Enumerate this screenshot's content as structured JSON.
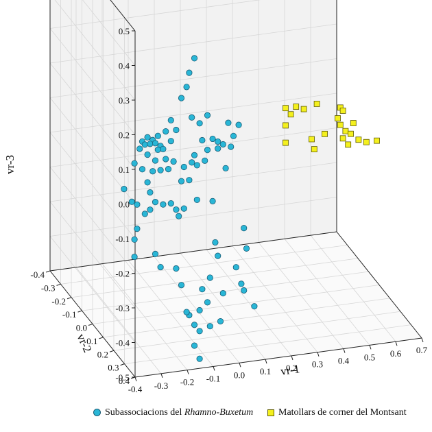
{
  "chart_data": {
    "type": "scatter",
    "projection": "3d",
    "axes": {
      "x": {
        "label": "vr-1",
        "ticks": [
          "-0.4",
          "-0.3",
          "-0.2",
          "-0.1",
          "0.0",
          "0.1",
          "0.2",
          "0.3",
          "0.4",
          "0.5",
          "0.6",
          "0.7"
        ],
        "range": [
          -0.4,
          0.7
        ]
      },
      "y": {
        "label": "vr-2",
        "ticks": [
          "-0.4",
          "-0.3",
          "-0.2",
          "-0.1",
          "0.0",
          "0.1",
          "0.2",
          "0.3",
          "0.4"
        ],
        "range": [
          -0.4,
          0.4
        ]
      },
      "z": {
        "label": "vr-3",
        "ticks": [
          "0.5",
          "0.4",
          "0.3",
          "0.2",
          "0.1",
          "0.0",
          "-0.1",
          "-0.2",
          "-0.3",
          "-0.4",
          "-0.5"
        ],
        "range": [
          -0.5,
          0.5
        ]
      }
    },
    "grid": true,
    "legend_position": "bottom",
    "series": [
      {
        "name": "Subassociacions del Rhamno-Buxetum",
        "name_plain": "Subassociacions del ",
        "name_italic": "Rhamno-Buxetum",
        "marker": "circle",
        "color": "#29b6d6",
        "stroke": "#1b5e77",
        "points": [
          [
            -0.05,
            0.1,
            0.27
          ],
          [
            -0.07,
            0.1,
            0.23
          ],
          [
            -0.08,
            0.1,
            0.19
          ],
          [
            -0.1,
            0.1,
            0.16
          ],
          [
            -0.06,
            0.1,
            0.1
          ],
          [
            -0.03,
            0.1,
            0.08
          ],
          [
            0.0,
            0.1,
            0.1
          ],
          [
            0.02,
            0.1,
            0.03
          ],
          [
            0.04,
            0.1,
            0.02
          ],
          [
            -0.02,
            0.1,
            0.03
          ],
          [
            -0.14,
            0.1,
            0.1
          ],
          [
            -0.12,
            0.1,
            0.07
          ],
          [
            -0.16,
            0.1,
            0.07
          ],
          [
            -0.19,
            0.1,
            0.06
          ],
          [
            -0.21,
            0.1,
            0.05
          ],
          [
            -0.23,
            0.1,
            0.06
          ],
          [
            -0.25,
            0.1,
            0.05
          ],
          [
            -0.24,
            0.1,
            0.04
          ],
          [
            -0.22,
            0.1,
            0.04
          ],
          [
            -0.2,
            0.1,
            0.04
          ],
          [
            -0.18,
            0.1,
            0.03
          ],
          [
            -0.26,
            0.1,
            0.03
          ],
          [
            -0.14,
            0.1,
            0.04
          ],
          [
            -0.17,
            0.1,
            0.02
          ],
          [
            -0.19,
            0.1,
            0.02
          ],
          [
            -0.23,
            0.1,
            0.01
          ],
          [
            -0.28,
            0.1,
            -0.01
          ],
          [
            -0.2,
            0.1,
            -0.01
          ],
          [
            -0.16,
            0.1,
            -0.01
          ],
          [
            -0.13,
            0.1,
            -0.02
          ],
          [
            -0.25,
            0.1,
            -0.03
          ],
          [
            -0.21,
            0.1,
            -0.04
          ],
          [
            -0.18,
            0.1,
            -0.04
          ],
          [
            -0.15,
            0.1,
            -0.04
          ],
          [
            -0.09,
            0.1,
            -0.04
          ],
          [
            -0.06,
            0.1,
            -0.03
          ],
          [
            -0.04,
            0.1,
            -0.04
          ],
          [
            -0.07,
            0.1,
            -0.08
          ],
          [
            -0.1,
            0.1,
            -0.08
          ],
          [
            -0.23,
            0.1,
            -0.07
          ],
          [
            -0.32,
            0.1,
            -0.08
          ],
          [
            -0.29,
            0.1,
            -0.12
          ],
          [
            -0.27,
            0.1,
            -0.13
          ],
          [
            -0.22,
            0.1,
            -0.1
          ],
          [
            -0.2,
            0.1,
            -0.13
          ],
          [
            -0.22,
            0.1,
            -0.15
          ],
          [
            -0.24,
            0.1,
            -0.16
          ],
          [
            -0.17,
            0.1,
            -0.14
          ],
          [
            -0.14,
            0.1,
            -0.14
          ],
          [
            -0.12,
            0.1,
            -0.16
          ],
          [
            -0.09,
            0.1,
            -0.16
          ],
          [
            -0.11,
            0.1,
            -0.18
          ],
          [
            -0.04,
            0.1,
            -0.14
          ],
          [
            0.02,
            0.1,
            -0.15
          ],
          [
            -0.27,
            0.1,
            -0.2
          ],
          [
            -0.28,
            0.1,
            -0.23
          ],
          [
            -0.28,
            0.1,
            -0.28
          ],
          [
            -0.2,
            0.1,
            -0.28
          ],
          [
            -0.18,
            0.1,
            -0.32
          ],
          [
            -0.12,
            0.1,
            -0.33
          ],
          [
            -0.1,
            0.1,
            -0.38
          ],
          [
            0.03,
            0.1,
            -0.27
          ],
          [
            0.04,
            0.1,
            -0.31
          ],
          [
            0.01,
            0.1,
            -0.37
          ],
          [
            0.11,
            0.1,
            -0.35
          ],
          [
            0.13,
            0.1,
            -0.4
          ],
          [
            0.14,
            0.1,
            -0.42
          ],
          [
            0.06,
            0.1,
            -0.42
          ],
          [
            0.15,
            0.1,
            -0.3
          ],
          [
            0.14,
            0.1,
            -0.24
          ],
          [
            -0.02,
            0.1,
            -0.4
          ],
          [
            0.0,
            0.1,
            -0.44
          ],
          [
            -0.03,
            0.1,
            -0.46
          ],
          [
            0.01,
            0.1,
            -0.51
          ],
          [
            -0.07,
            0.1,
            -0.47
          ],
          [
            -0.08,
            0.1,
            -0.46
          ],
          [
            -0.05,
            0.1,
            -0.5
          ],
          [
            -0.03,
            0.1,
            -0.52
          ],
          [
            0.05,
            0.1,
            -0.5
          ],
          [
            0.18,
            0.1,
            -0.47
          ],
          [
            -0.05,
            0.1,
            -0.56
          ],
          [
            -0.03,
            0.1,
            -0.6
          ],
          [
            0.1,
            0.1,
            0.03
          ],
          [
            0.12,
            0.1,
            0.06
          ],
          [
            0.08,
            0.1,
            0.07
          ],
          [
            0.06,
            0.1,
            0.01
          ],
          [
            0.04,
            0.1,
            0.0
          ],
          [
            0.0,
            0.1,
            0.0
          ],
          [
            -0.01,
            0.1,
            -0.03
          ],
          [
            -0.05,
            0.1,
            -0.01
          ],
          [
            0.07,
            0.1,
            -0.06
          ],
          [
            0.09,
            0.1,
            0.0
          ]
        ]
      },
      {
        "name": "Matollars de corner del Montsant",
        "marker": "square",
        "color": "#f4f01e",
        "stroke": "#5e5a00",
        "points": [
          [
            0.3,
            0.1,
            0.09
          ],
          [
            0.32,
            0.1,
            0.07
          ],
          [
            0.34,
            0.1,
            0.09
          ],
          [
            0.37,
            0.1,
            0.08
          ],
          [
            0.42,
            0.1,
            0.09
          ],
          [
            0.51,
            0.1,
            0.07
          ],
          [
            0.52,
            0.1,
            0.06
          ],
          [
            0.3,
            0.1,
            0.04
          ],
          [
            0.5,
            0.1,
            0.04
          ],
          [
            0.51,
            0.1,
            0.02
          ],
          [
            0.56,
            0.1,
            0.02
          ],
          [
            0.3,
            0.1,
            -0.01
          ],
          [
            0.4,
            0.1,
            -0.01
          ],
          [
            0.45,
            0.1,
            0.0
          ],
          [
            0.53,
            0.1,
            0.0
          ],
          [
            0.55,
            0.1,
            -0.01
          ],
          [
            0.41,
            0.1,
            -0.04
          ],
          [
            0.52,
            0.1,
            -0.02
          ],
          [
            0.54,
            0.1,
            -0.04
          ],
          [
            0.58,
            0.1,
            -0.03
          ],
          [
            0.61,
            0.1,
            -0.04
          ],
          [
            0.65,
            0.1,
            -0.04
          ]
        ]
      }
    ]
  }
}
